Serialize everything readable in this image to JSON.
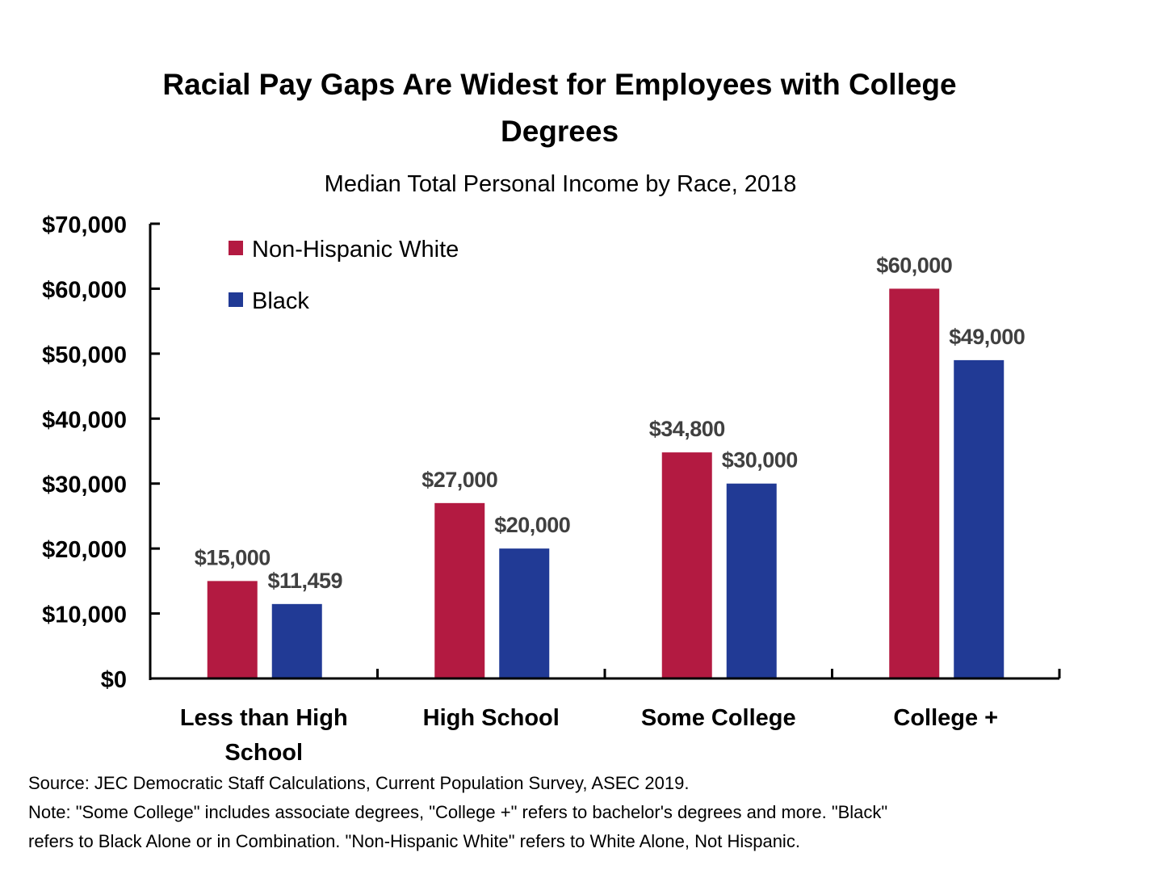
{
  "chart_data": {
    "type": "bar",
    "title_lines": [
      "Racial Pay Gaps Are Widest for Employees with College",
      "Degrees"
    ],
    "subtitle": "Median Total Personal Income by Race, 2018",
    "categories": [
      [
        "Less than High",
        "School"
      ],
      [
        "High School"
      ],
      [
        "Some College"
      ],
      [
        "College +"
      ]
    ],
    "series": [
      {
        "name": "Non-Hispanic White",
        "color": "#B31A41",
        "values": [
          15000,
          27000,
          34800,
          60000
        ],
        "labels": [
          "$15,000",
          "$27,000",
          "$34,800",
          "$60,000"
        ]
      },
      {
        "name": "Black",
        "color": "#213A95",
        "values": [
          11459,
          20000,
          30000,
          49000
        ],
        "labels": [
          "$11,459",
          "$20,000",
          "$30,000",
          "$49,000"
        ]
      }
    ],
    "ylim": [
      0,
      70000
    ],
    "yticks": [
      0,
      10000,
      20000,
      30000,
      40000,
      50000,
      60000,
      70000
    ],
    "ytick_labels": [
      "$0",
      "$10,000",
      "$20,000",
      "$30,000",
      "$40,000",
      "$50,000",
      "$60,000",
      "$70,000"
    ],
    "xlabel": "",
    "ylabel": "",
    "grid": false,
    "legend_position": "top-left"
  },
  "footer": [
    "Source: JEC Democratic Staff Calculations, Current Population Survey, ASEC 2019.",
    "Note: \"Some College\" includes associate degrees, \"College +\" refers to bachelor's degrees and more.   \"Black\"",
    "refers to Black Alone or in Combination. \"Non-Hispanic White\" refers to White Alone, Not Hispanic."
  ]
}
